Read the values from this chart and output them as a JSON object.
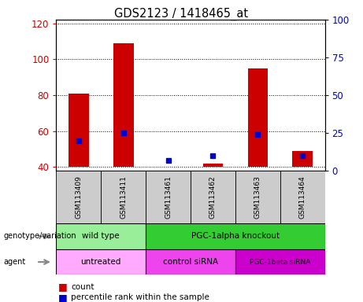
{
  "title": "GDS2123 / 1418465_at",
  "samples": [
    "GSM113409",
    "GSM113411",
    "GSM113461",
    "GSM113462",
    "GSM113463",
    "GSM113464"
  ],
  "count_values": [
    81,
    109,
    40,
    42,
    95,
    49
  ],
  "percentile_values": [
    20,
    25,
    7,
    10,
    24,
    10
  ],
  "ylim_left": [
    38,
    122
  ],
  "ylim_right": [
    0,
    100
  ],
  "yticks_left": [
    40,
    60,
    80,
    100,
    120
  ],
  "yticks_right": [
    0,
    25,
    50,
    75,
    100
  ],
  "bar_bottom": 40,
  "count_color": "#cc0000",
  "percentile_color": "#0000cc",
  "bar_width": 0.45,
  "genotype_groups": [
    {
      "label": "wild type",
      "span": [
        0,
        2
      ],
      "color": "#99ee99"
    },
    {
      "label": "PGC-1alpha knockout",
      "span": [
        2,
        6
      ],
      "color": "#33cc33"
    }
  ],
  "agent_groups": [
    {
      "label": "untreated",
      "span": [
        0,
        2
      ],
      "color": "#ffaaff"
    },
    {
      "label": "control siRNA",
      "span": [
        2,
        4
      ],
      "color": "#ee44ee"
    },
    {
      "label": "PGC-1beta siRNA",
      "span": [
        4,
        6
      ],
      "color": "#cc00cc"
    }
  ],
  "left_label_color": "#cc0000",
  "right_label_color": "#0000cc",
  "sample_box_color": "#cccccc",
  "xlim": [
    -0.5,
    5.5
  ]
}
